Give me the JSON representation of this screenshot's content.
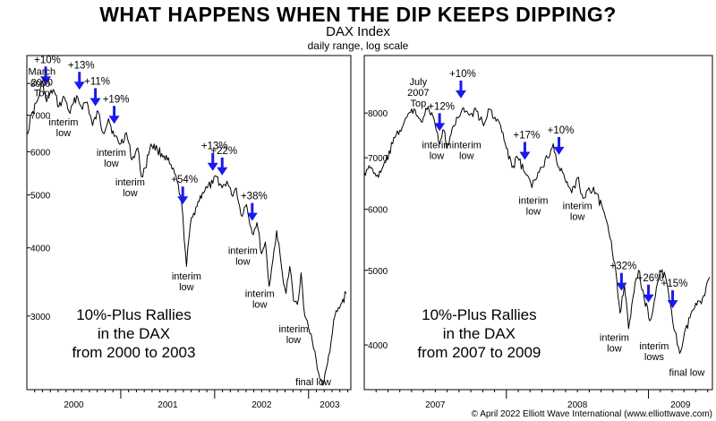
{
  "header": {
    "title": "WHAT HAPPENS WHEN THE DIP KEEPS DIPPING?",
    "subtitle": "DAX Index",
    "note": "daily range, log scale"
  },
  "footer": {
    "copyright": "© April 2022 Elliott Wave International (www.elliottwave.com)"
  },
  "colors": {
    "arrow": "#1a1aee",
    "line": "#000000"
  },
  "chart_data": [
    {
      "type": "line",
      "title": "10%-Plus Rallies in the DAX from 2000 to 2003",
      "inset_lines": [
        "10%-Plus Rallies",
        "in the DAX",
        "from 2000 to 2003"
      ],
      "scale": "log",
      "ylim": [
        2200,
        9000
      ],
      "y_ticks": [
        3000,
        4000,
        5000,
        6000,
        7000,
        8000
      ],
      "y_tick_labels": [
        "3000",
        "4000",
        "5000",
        "6000",
        "7000",
        "8000"
      ],
      "xlim": [
        2000.0,
        2003.45
      ],
      "x_labels": [
        "2000",
        "2001",
        "2002",
        "2003"
      ],
      "x": [
        2000.0,
        2000.05,
        2000.12,
        2000.17,
        2000.21,
        2000.28,
        2000.34,
        2000.4,
        2000.46,
        2000.53,
        2000.58,
        2000.64,
        2000.7,
        2000.76,
        2000.81,
        2000.87,
        2000.93,
        2001.0,
        2001.06,
        2001.12,
        2001.18,
        2001.22,
        2001.26,
        2001.32,
        2001.39,
        2001.46,
        2001.52,
        2001.6,
        2001.65,
        2001.7,
        2001.74,
        2001.8,
        2001.87,
        2001.92,
        2001.98,
        2002.02,
        2002.08,
        2002.13,
        2002.18,
        2002.23,
        2002.28,
        2002.34,
        2002.4,
        2002.45,
        2002.5,
        2002.54,
        2002.58,
        2002.62,
        2002.66,
        2002.72,
        2002.76,
        2002.8,
        2002.84,
        2002.88,
        2002.92,
        2002.96,
        2003.0,
        2003.04,
        2003.08,
        2003.12,
        2003.16,
        2003.2,
        2003.24,
        2003.28,
        2003.33,
        2003.4
      ],
      "y": [
        6450,
        7000,
        7500,
        8050,
        7400,
        7800,
        7250,
        7550,
        7050,
        7600,
        7250,
        7400,
        6700,
        7100,
        6500,
        6900,
        6400,
        6200,
        6500,
        5800,
        6100,
        5400,
        5600,
        6200,
        6050,
        5900,
        5700,
        5300,
        4800,
        3700,
        4400,
        4750,
        5050,
        5150,
        5250,
        5400,
        5150,
        5300,
        5000,
        5150,
        4600,
        4800,
        4250,
        4450,
        3900,
        4100,
        3400,
        3800,
        4300,
        3600,
        3300,
        3700,
        3200,
        3150,
        3600,
        3000,
        2850,
        2700,
        2500,
        2300,
        2250,
        2450,
        2700,
        3000,
        3100,
        3300
      ],
      "rallies": [
        {
          "label": "+10%",
          "x": 2000.2
        },
        {
          "label": "+13%",
          "x": 2000.56
        },
        {
          "label": "+11%",
          "x": 2000.73
        },
        {
          "label": "+19%",
          "x": 2000.93
        },
        {
          "label": "+54%",
          "x": 2001.66
        },
        {
          "label": "+13%",
          "x": 2001.98
        },
        {
          "label": "+22%",
          "x": 2002.08
        },
        {
          "label": "+38%",
          "x": 2002.4
        }
      ],
      "annotations": [
        {
          "text": "March\n2000\nTop",
          "x": 2000.16,
          "y": 8300
        },
        {
          "text": "interim\nlow",
          "x": 2000.39,
          "y": 6700
        },
        {
          "text": "interim\nlow",
          "x": 2000.9,
          "y": 5900
        },
        {
          "text": "interim\nlow",
          "x": 2001.1,
          "y": 5200
        },
        {
          "text": "interim\nlow",
          "x": 2001.7,
          "y": 3500
        },
        {
          "text": "interim\nlow",
          "x": 2002.3,
          "y": 3900
        },
        {
          "text": "interim\nlow",
          "x": 2002.48,
          "y": 3250
        },
        {
          "text": "interim\nlow",
          "x": 2002.84,
          "y": 2800
        },
        {
          "text": "final low",
          "x": 2003.05,
          "y": 2240
        }
      ]
    },
    {
      "type": "line",
      "title": "10%-Plus Rallies in the DAX from 2007 to 2009",
      "inset_lines": [
        "10%-Plus Rallies",
        "in the DAX",
        "from 2007 to 2009"
      ],
      "scale": "log",
      "ylim": [
        3500,
        9500
      ],
      "y_ticks": [
        4000,
        5000,
        6000,
        7000,
        8000
      ],
      "y_tick_labels": [
        "4000",
        "5000",
        "6000",
        "7000",
        "8000"
      ],
      "xlim": [
        2007.0,
        2009.45
      ],
      "x_labels": [
        "2007",
        "2008",
        "2009"
      ],
      "x": [
        2007.0,
        2007.05,
        2007.1,
        2007.15,
        2007.2,
        2007.25,
        2007.3,
        2007.35,
        2007.4,
        2007.45,
        2007.5,
        2007.53,
        2007.56,
        2007.58,
        2007.61,
        2007.65,
        2007.69,
        2007.74,
        2007.79,
        2007.84,
        2007.88,
        2007.92,
        2007.96,
        2008.0,
        2008.04,
        2008.08,
        2008.13,
        2008.18,
        2008.24,
        2008.29,
        2008.33,
        2008.37,
        2008.42,
        2008.46,
        2008.5,
        2008.54,
        2008.58,
        2008.63,
        2008.68,
        2008.73,
        2008.77,
        2008.8,
        2008.83,
        2008.86,
        2008.89,
        2008.93,
        2008.97,
        2009.01,
        2009.04,
        2009.08,
        2009.12,
        2009.17,
        2009.22,
        2009.3,
        2009.38,
        2009.43
      ],
      "y": [
        6700,
        6800,
        6600,
        6900,
        7300,
        7600,
        7900,
        8100,
        7800,
        8150,
        7700,
        7300,
        7600,
        7200,
        7500,
        7900,
        8100,
        7950,
        8050,
        7700,
        8100,
        7900,
        7700,
        7200,
        6800,
        7000,
        6700,
        6400,
        6800,
        7000,
        7300,
        6800,
        6500,
        6300,
        6600,
        6200,
        6400,
        6300,
        6000,
        5500,
        5000,
        4400,
        4800,
        4200,
        4600,
        5000,
        4600,
        4300,
        4550,
        5000,
        4900,
        4300,
        3900,
        4400,
        4600,
        4900
      ],
      "rallies": [
        {
          "label": "+12%",
          "x": 2007.53
        },
        {
          "label": "+10%",
          "x": 2007.68
        },
        {
          "label": "+17%",
          "x": 2008.13
        },
        {
          "label": "+10%",
          "x": 2008.37
        },
        {
          "label": "+32%",
          "x": 2008.81
        },
        {
          "label": "+26%",
          "x": 2009.0
        },
        {
          "label": "+15%",
          "x": 2009.17
        }
      ],
      "annotations": [
        {
          "text": "July\n2007\nTop",
          "x": 2007.38,
          "y": 8700
        },
        {
          "text": "interim\nlow",
          "x": 2007.51,
          "y": 7200
        },
        {
          "text": "interim\nlow",
          "x": 2007.72,
          "y": 7200
        },
        {
          "text": "interim\nlow",
          "x": 2008.19,
          "y": 6100
        },
        {
          "text": "interim\nlow",
          "x": 2008.5,
          "y": 6000
        },
        {
          "text": "interim\nlow",
          "x": 2008.76,
          "y": 4050
        },
        {
          "text": "interim\nlows",
          "x": 2009.04,
          "y": 3950
        },
        {
          "text": "final low",
          "x": 2009.27,
          "y": 3650
        }
      ]
    }
  ]
}
